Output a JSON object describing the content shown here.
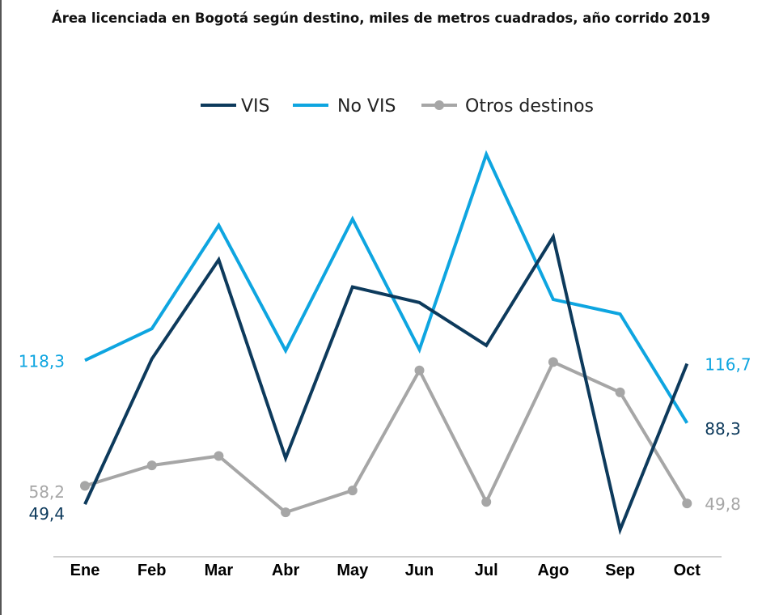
{
  "chart_data": {
    "type": "line",
    "title": "Área licenciada en Bogotá según destino, miles de metros cuadrados, año corrido 2019",
    "xlabel": "",
    "ylabel": "",
    "categories": [
      "Ene",
      "Feb",
      "Mar",
      "Abr",
      "May",
      "Jun",
      "Jul",
      "Ago",
      "Sep",
      "Oct"
    ],
    "ylim": [
      32,
      220
    ],
    "grid": false,
    "legend_position": "top-center",
    "series": [
      {
        "name": "VIS",
        "color": "#0d3a5c",
        "marker": "none",
        "values": [
          49.4,
          119,
          166.5,
          71.5,
          153.5,
          146,
          125.5,
          177.5,
          37.2,
          116.7
        ]
      },
      {
        "name": "No VIS",
        "color": "#0ea5e0",
        "marker": "none",
        "values": [
          118.3,
          133.5,
          183,
          123,
          186,
          123.5,
          217,
          147.5,
          140.5,
          88.3
        ]
      },
      {
        "name": "Otros destinos",
        "color": "#a6a6a6",
        "marker": "circle",
        "values": [
          58.2,
          68,
          72.5,
          45.5,
          56,
          113.5,
          50.5,
          117.5,
          103,
          49.8
        ]
      }
    ],
    "data_labels": [
      {
        "series": "No VIS",
        "index": 0,
        "text": "118,3",
        "side": "left",
        "color": "#0ea5e0"
      },
      {
        "series": "Otros destinos",
        "index": 0,
        "text": "58,2",
        "side": "left",
        "color": "#a6a6a6"
      },
      {
        "series": "VIS",
        "index": 0,
        "text": "49,4",
        "side": "left",
        "color": "#0d3a5c"
      },
      {
        "series": "VIS",
        "index": 9,
        "text": "116,7",
        "side": "right",
        "color": "#0ea5e0"
      },
      {
        "series": "No VIS",
        "index": 9,
        "text": "88,3",
        "side": "right",
        "color": "#0d3a5c"
      },
      {
        "series": "Otros destinos",
        "index": 9,
        "text": "49,8",
        "side": "right",
        "color": "#a6a6a6"
      }
    ]
  }
}
